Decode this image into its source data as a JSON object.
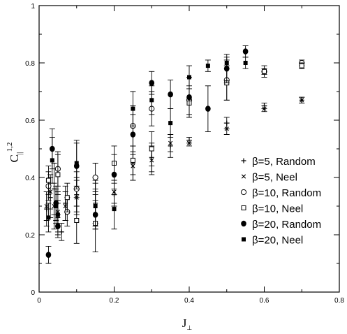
{
  "chart_data": {
    "type": "scatter",
    "title": "",
    "xlabel": "J",
    "xlabel_sub": "⊥",
    "ylabel": "C",
    "ylabel_sub": "||",
    "ylabel_sup": "1,2",
    "xlim": [
      0,
      0.8
    ],
    "ylim": [
      0,
      1
    ],
    "xticks": [
      0,
      0.2,
      0.4,
      0.6,
      0.8
    ],
    "yticks": [
      0,
      0.2,
      0.4,
      0.6,
      0.8,
      1
    ],
    "xtick_labels": [
      "0",
      "0.2",
      "0.4",
      "0.6",
      "0.8"
    ],
    "ytick_labels": [
      "0",
      "0.2",
      "0.4",
      "0.6",
      "0.8",
      "1"
    ],
    "grid": false,
    "legend_position": "bottom-right",
    "series": [
      {
        "name": "β=5, Random",
        "marker": "plus",
        "points": [
          {
            "x": 0.02,
            "y": 0.29,
            "err": 0.06
          },
          {
            "x": 0.03,
            "y": 0.33,
            "err": 0.07
          },
          {
            "x": 0.04,
            "y": 0.36,
            "err": 0.09
          },
          {
            "x": 0.05,
            "y": 0.26,
            "err": 0.06
          },
          {
            "x": 0.06,
            "y": 0.21,
            "err": 0.03
          },
          {
            "x": 0.07,
            "y": 0.31,
            "err": 0.06
          },
          {
            "x": 0.1,
            "y": 0.34,
            "err": 0.06
          },
          {
            "x": 0.15,
            "y": 0.31,
            "err": 0.08
          },
          {
            "x": 0.2,
            "y": 0.34,
            "err": 0.04
          },
          {
            "x": 0.25,
            "y": 0.45,
            "err": 0.06
          },
          {
            "x": 0.3,
            "y": 0.47,
            "err": 0.05
          },
          {
            "x": 0.35,
            "y": 0.51,
            "err": 0.04
          },
          {
            "x": 0.4,
            "y": 0.53,
            "err": 0.01
          },
          {
            "x": 0.5,
            "y": 0.59,
            "err": 0.02
          },
          {
            "x": 0.6,
            "y": 0.65,
            "err": 0.01
          },
          {
            "x": 0.7,
            "y": 0.67,
            "err": 0.01
          }
        ]
      },
      {
        "name": "β=5, Neel",
        "marker": "cross",
        "points": [
          {
            "x": 0.02,
            "y": 0.3,
            "err": 0.05
          },
          {
            "x": 0.03,
            "y": 0.35,
            "err": 0.06
          },
          {
            "x": 0.04,
            "y": 0.3,
            "err": 0.08
          },
          {
            "x": 0.05,
            "y": 0.28,
            "err": 0.07
          },
          {
            "x": 0.07,
            "y": 0.3,
            "err": 0.05
          },
          {
            "x": 0.1,
            "y": 0.33,
            "err": 0.06
          },
          {
            "x": 0.15,
            "y": 0.3,
            "err": 0.06
          },
          {
            "x": 0.2,
            "y": 0.35,
            "err": 0.04
          },
          {
            "x": 0.25,
            "y": 0.44,
            "err": 0.05
          },
          {
            "x": 0.3,
            "y": 0.46,
            "err": 0.05
          },
          {
            "x": 0.35,
            "y": 0.52,
            "err": 0.03
          },
          {
            "x": 0.4,
            "y": 0.52,
            "err": 0.01
          },
          {
            "x": 0.5,
            "y": 0.57,
            "err": 0.02
          },
          {
            "x": 0.6,
            "y": 0.64,
            "err": 0.01
          },
          {
            "x": 0.7,
            "y": 0.67,
            "err": 0.01
          }
        ]
      },
      {
        "name": "β=10, Random",
        "marker": "open-circle",
        "points": [
          {
            "x": 0.025,
            "y": 0.37,
            "err": 0.05
          },
          {
            "x": 0.05,
            "y": 0.43,
            "err": 0.06
          },
          {
            "x": 0.075,
            "y": 0.28,
            "err": 0.05
          },
          {
            "x": 0.1,
            "y": 0.36,
            "err": 0.06
          },
          {
            "x": 0.15,
            "y": 0.4,
            "err": 0.05
          },
          {
            "x": 0.25,
            "y": 0.58,
            "err": 0.07
          },
          {
            "x": 0.3,
            "y": 0.64,
            "err": 0.06
          },
          {
            "x": 0.4,
            "y": 0.67,
            "err": 0.05
          },
          {
            "x": 0.5,
            "y": 0.74,
            "err": 0.07
          },
          {
            "x": 0.6,
            "y": 0.77,
            "err": 0.01
          },
          {
            "x": 0.7,
            "y": 0.8,
            "err": 0.01
          }
        ]
      },
      {
        "name": "β=10, Neel",
        "marker": "open-square",
        "points": [
          {
            "x": 0.025,
            "y": 0.39,
            "err": 0.05
          },
          {
            "x": 0.05,
            "y": 0.41,
            "err": 0.07
          },
          {
            "x": 0.075,
            "y": 0.33,
            "err": 0.05
          },
          {
            "x": 0.1,
            "y": 0.25,
            "err": 0.08
          },
          {
            "x": 0.15,
            "y": 0.24,
            "err": 0.1
          },
          {
            "x": 0.2,
            "y": 0.45,
            "err": 0.06
          },
          {
            "x": 0.25,
            "y": 0.46,
            "err": 0.05
          },
          {
            "x": 0.3,
            "y": 0.5,
            "err": 0.06
          },
          {
            "x": 0.4,
            "y": 0.66,
            "err": 0.05
          },
          {
            "x": 0.5,
            "y": 0.73,
            "err": 0.06
          },
          {
            "x": 0.6,
            "y": 0.77,
            "err": 0.02
          },
          {
            "x": 0.7,
            "y": 0.79,
            "err": 0.01
          }
        ]
      },
      {
        "name": "β=20, Random",
        "marker": "filled-circle",
        "points": [
          {
            "x": 0.025,
            "y": 0.13,
            "err": 0.03
          },
          {
            "x": 0.035,
            "y": 0.5,
            "err": 0.07
          },
          {
            "x": 0.045,
            "y": 0.31,
            "err": 0.06
          },
          {
            "x": 0.05,
            "y": 0.23,
            "err": 0.04
          },
          {
            "x": 0.1,
            "y": 0.44,
            "err": 0.08
          },
          {
            "x": 0.15,
            "y": 0.27,
            "err": 0.05
          },
          {
            "x": 0.2,
            "y": 0.41,
            "err": 0.07
          },
          {
            "x": 0.25,
            "y": 0.55,
            "err": 0.07
          },
          {
            "x": 0.3,
            "y": 0.73,
            "err": 0.04
          },
          {
            "x": 0.35,
            "y": 0.69,
            "err": 0.05
          },
          {
            "x": 0.4,
            "y": 0.68,
            "err": 0.07
          },
          {
            "x": 0.45,
            "y": 0.64,
            "err": 0.08
          },
          {
            "x": 0.5,
            "y": 0.78,
            "err": 0.05
          },
          {
            "x": 0.55,
            "y": 0.84,
            "err": 0.02
          }
        ]
      },
      {
        "name": "β=20, Neel",
        "marker": "filled-square",
        "points": [
          {
            "x": 0.025,
            "y": 0.26,
            "err": 0.05
          },
          {
            "x": 0.035,
            "y": 0.46,
            "err": 0.08
          },
          {
            "x": 0.045,
            "y": 0.3,
            "err": 0.06
          },
          {
            "x": 0.05,
            "y": 0.27,
            "err": 0.04
          },
          {
            "x": 0.1,
            "y": 0.45,
            "err": 0.08
          },
          {
            "x": 0.15,
            "y": 0.3,
            "err": 0.08
          },
          {
            "x": 0.2,
            "y": 0.29,
            "err": 0.07
          },
          {
            "x": 0.25,
            "y": 0.64,
            "err": 0.06
          },
          {
            "x": 0.3,
            "y": 0.67,
            "err": 0.05
          },
          {
            "x": 0.35,
            "y": 0.59,
            "err": 0.05
          },
          {
            "x": 0.4,
            "y": 0.75,
            "err": 0.04
          },
          {
            "x": 0.45,
            "y": 0.79,
            "err": 0.02
          },
          {
            "x": 0.5,
            "y": 0.8,
            "err": 0.02
          },
          {
            "x": 0.55,
            "y": 0.8,
            "err": 0.02
          }
        ]
      }
    ]
  }
}
